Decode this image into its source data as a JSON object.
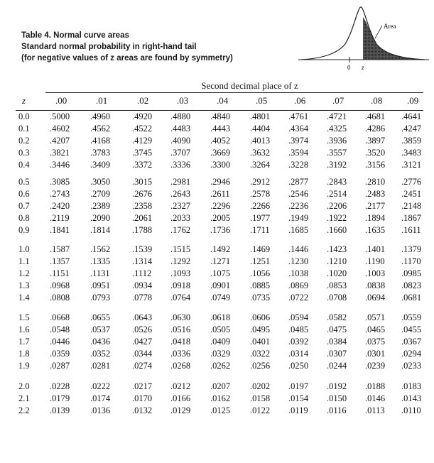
{
  "caption": {
    "title": "Table 4. Normal curve areas",
    "line2": "Standard normal probability in right-hand tail",
    "line3": "(for negative values of z areas are found by symmetry)"
  },
  "figure": {
    "area_label": "Area",
    "axis_zero": "0",
    "axis_z": "z"
  },
  "table": {
    "heading": "Second decimal place of z",
    "z_header": "z",
    "columns": [
      ".00",
      ".01",
      ".02",
      ".03",
      ".04",
      ".05",
      ".06",
      ".07",
      ".08",
      ".09"
    ],
    "rows": [
      {
        "z": "0.0",
        "values": [
          ".5000",
          ".4960",
          ".4920",
          ".4880",
          ".4840",
          ".4801",
          ".4761",
          ".4721",
          ".4681",
          ".4641"
        ]
      },
      {
        "z": "0.1",
        "values": [
          ".4602",
          ".4562",
          ".4522",
          ".4483",
          ".4443",
          ".4404",
          ".4364",
          ".4325",
          ".4286",
          ".4247"
        ]
      },
      {
        "z": "0.2",
        "values": [
          ".4207",
          ".4168",
          ".4129",
          ".4090",
          ".4052",
          ".4013",
          ".3974",
          ".3936",
          ".3897",
          ".3859"
        ]
      },
      {
        "z": "0.3",
        "values": [
          ".3821",
          ".3783",
          ".3745",
          ".3707",
          ".3669",
          ".3632",
          ".3594",
          ".3557",
          ".3520",
          ".3483"
        ]
      },
      {
        "z": "0.4",
        "values": [
          ".3446",
          ".3409",
          ".3372",
          ".3336",
          ".3300",
          ".3264",
          ".3228",
          ".3192",
          ".3156",
          ".3121"
        ]
      },
      {
        "z": "0.5",
        "values": [
          ".3085",
          ".3050",
          ".3015",
          ".2981",
          ".2946",
          ".2912",
          ".2877",
          ".2843",
          ".2810",
          ".2776"
        ]
      },
      {
        "z": "0.6",
        "values": [
          ".2743",
          ".2709",
          ".2676",
          ".2643",
          ".2611",
          ".2578",
          ".2546",
          ".2514",
          ".2483",
          ".2451"
        ]
      },
      {
        "z": "0.7",
        "values": [
          ".2420",
          ".2389",
          ".2358",
          ".2327",
          ".2296",
          ".2266",
          ".2236",
          ".2206",
          ".2177",
          ".2148"
        ]
      },
      {
        "z": "0.8",
        "values": [
          ".2119",
          ".2090",
          ".2061",
          ".2033",
          ".2005",
          ".1977",
          ".1949",
          ".1922",
          ".1894",
          ".1867"
        ]
      },
      {
        "z": "0.9",
        "values": [
          ".1841",
          ".1814",
          ".1788",
          ".1762",
          ".1736",
          ".1711",
          ".1685",
          ".1660",
          ".1635",
          ".1611"
        ]
      },
      {
        "z": "1.0",
        "values": [
          ".1587",
          ".1562",
          ".1539",
          ".1515",
          ".1492",
          ".1469",
          ".1446",
          ".1423",
          ".1401",
          ".1379"
        ]
      },
      {
        "z": "1.1",
        "values": [
          ".1357",
          ".1335",
          ".1314",
          ".1292",
          ".1271",
          ".1251",
          ".1230",
          ".1210",
          ".1190",
          ".1170"
        ]
      },
      {
        "z": "1.2",
        "values": [
          ".1151",
          ".1131",
          ".1112",
          ".1093",
          ".1075",
          ".1056",
          ".1038",
          ".1020",
          ".1003",
          ".0985"
        ]
      },
      {
        "z": "1.3",
        "values": [
          ".0968",
          ".0951",
          ".0934",
          ".0918",
          ".0901",
          ".0885",
          ".0869",
          ".0853",
          ".0838",
          ".0823"
        ]
      },
      {
        "z": "1.4",
        "values": [
          ".0808",
          ".0793",
          ".0778",
          ".0764",
          ".0749",
          ".0735",
          ".0722",
          ".0708",
          ".0694",
          ".0681"
        ]
      },
      {
        "z": "1.5",
        "values": [
          ".0668",
          ".0655",
          ".0643",
          ".0630",
          ".0618",
          ".0606",
          ".0594",
          ".0582",
          ".0571",
          ".0559"
        ]
      },
      {
        "z": "1.6",
        "values": [
          ".0548",
          ".0537",
          ".0526",
          ".0516",
          ".0505",
          ".0495",
          ".0485",
          ".0475",
          ".0465",
          ".0455"
        ]
      },
      {
        "z": "1.7",
        "values": [
          ".0446",
          ".0436",
          ".0427",
          ".0418",
          ".0409",
          ".0401",
          ".0392",
          ".0384",
          ".0375",
          ".0367"
        ]
      },
      {
        "z": "1.8",
        "values": [
          ".0359",
          ".0352",
          ".0344",
          ".0336",
          ".0329",
          ".0322",
          ".0314",
          ".0307",
          ".0301",
          ".0294"
        ]
      },
      {
        "z": "1.9",
        "values": [
          ".0287",
          ".0281",
          ".0274",
          ".0268",
          ".0262",
          ".0256",
          ".0250",
          ".0244",
          ".0239",
          ".0233"
        ]
      },
      {
        "z": "2.0",
        "values": [
          ".0228",
          ".0222",
          ".0217",
          ".0212",
          ".0207",
          ".0202",
          ".0197",
          ".0192",
          ".0188",
          ".0183"
        ]
      },
      {
        "z": "2.1",
        "values": [
          ".0179",
          ".0174",
          ".0170",
          ".0166",
          ".0162",
          ".0158",
          ".0154",
          ".0150",
          ".0146",
          ".0143"
        ]
      },
      {
        "z": "2.2",
        "values": [
          ".0139",
          ".0136",
          ".0132",
          ".0129",
          ".0125",
          ".0122",
          ".0119",
          ".0116",
          ".0113",
          ".0110"
        ]
      }
    ]
  }
}
